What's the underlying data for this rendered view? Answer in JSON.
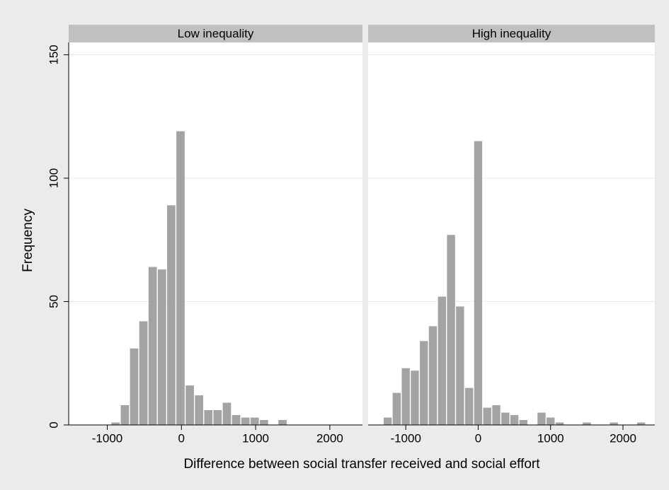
{
  "chart_data": [
    {
      "type": "histogram",
      "title": "Low inequality",
      "bins": [
        -950,
        -825,
        -700,
        -575,
        -450,
        -325,
        -200,
        -75,
        50,
        175,
        300,
        425,
        550,
        675,
        800,
        925,
        1050,
        1175,
        1300,
        1425
      ],
      "counts": [
        1,
        8,
        31,
        42,
        64,
        63,
        89,
        119,
        16,
        12,
        6,
        6,
        9,
        4,
        3,
        3,
        2,
        0,
        2
      ],
      "color": "#a3a3a3",
      "xlim": [
        -1520,
        2440
      ],
      "xticks": [
        -1000,
        0,
        1000,
        2000
      ],
      "ylim": [
        0,
        155
      ],
      "yticks": [
        0,
        50,
        100,
        150
      ],
      "grid": true
    },
    {
      "type": "histogram",
      "title": "High inequality",
      "bins": [
        -1312.5,
        -1187.5,
        -1062.5,
        -937.5,
        -812.5,
        -687.5,
        -562.5,
        -437.5,
        -312.5,
        -187.5,
        -62.5,
        62.5,
        187.5,
        312.5,
        437.5,
        562.5,
        687.5,
        812.5,
        937.5,
        1062.5,
        1187.5,
        1312.5,
        1437.5,
        1562.5,
        1687.5,
        1812.5,
        1937.5,
        2062.5,
        2187.5,
        2312.5
      ],
      "counts": [
        3,
        13,
        23,
        22,
        34,
        40,
        52,
        77,
        48,
        15,
        115,
        7,
        8,
        5,
        4,
        2,
        0,
        5,
        3,
        1,
        0,
        0,
        1,
        0,
        0,
        1,
        0,
        0,
        1
      ],
      "color": "#a3a3a3",
      "xlim": [
        -1520,
        2440
      ],
      "xticks": [
        -1000,
        0,
        1000,
        2000
      ],
      "ylim": [
        0,
        155
      ],
      "yticks": [
        0,
        50,
        100,
        150
      ],
      "grid": true
    }
  ],
  "x_label": "Difference between social transfer received and social effort",
  "y_label": "Frequency"
}
